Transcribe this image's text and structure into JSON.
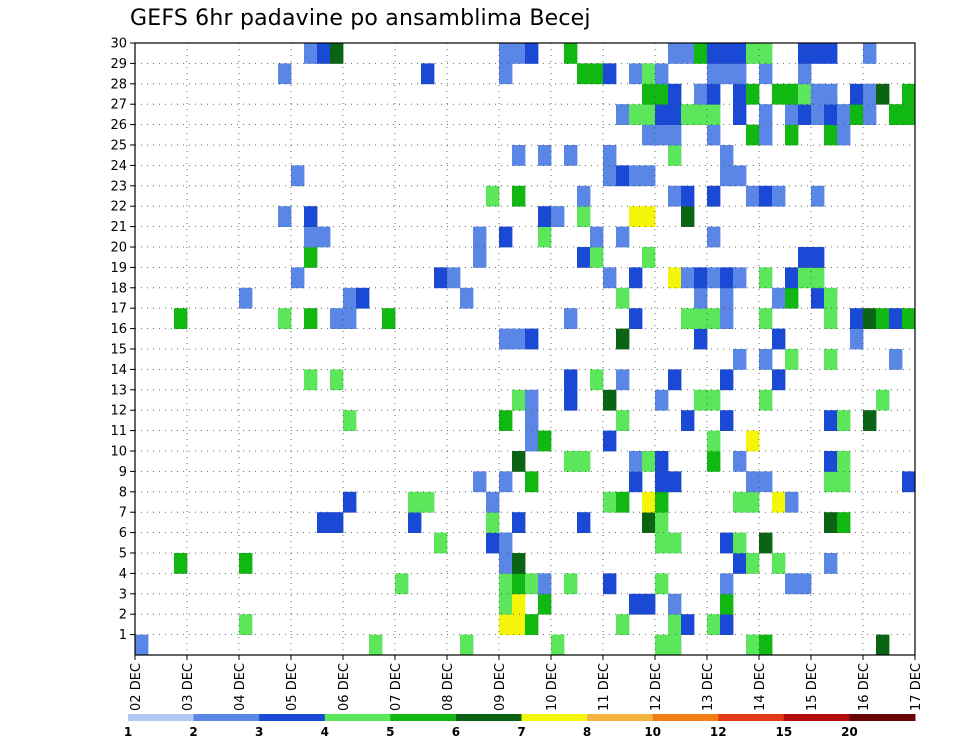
{
  "chart_data": {
    "type": "heatmap",
    "title": "GEFS 6hr padavine po ansamblima Becej",
    "xlabel": "",
    "ylabel": "",
    "x_tick_labels": [
      "02 DEC",
      "03 DEC",
      "04 DEC",
      "05 DEC",
      "06 DEC",
      "07 DEC",
      "08 DEC",
      "09 DEC",
      "10 DEC",
      "11 DEC",
      "12 DEC",
      "13 DEC",
      "14 DEC",
      "15 DEC",
      "16 DEC",
      "17 DEC"
    ],
    "y_tick_labels": [
      "1",
      "2",
      "3",
      "4",
      "5",
      "6",
      "7",
      "8",
      "9",
      "10",
      "11",
      "12",
      "13",
      "14",
      "15",
      "16",
      "17",
      "18",
      "19",
      "20",
      "21",
      "22",
      "23",
      "24",
      "25",
      "26",
      "27",
      "28",
      "29",
      "30"
    ],
    "xlim": [
      0,
      60
    ],
    "ylim": [
      0,
      30
    ],
    "grid": true,
    "legend": {
      "placement": "bottom",
      "levels": [
        "1",
        "2",
        "3",
        "4",
        "5",
        "6",
        "7",
        "8",
        "10",
        "12",
        "15",
        "20"
      ],
      "colors": [
        "#b4c8f4",
        "#5a87e6",
        "#1a49d6",
        "#5ce65c",
        "#12b812",
        "#0a6414",
        "#f5f50a",
        "#f5b440",
        "#f27d14",
        "#e23a16",
        "#b30a0a",
        "#6a0505"
      ]
    },
    "cells": [
      [
        0,
        0,
        1
      ],
      [
        18,
        0,
        3
      ],
      [
        25,
        0,
        3
      ],
      [
        32,
        0,
        3
      ],
      [
        40,
        0,
        3
      ],
      [
        41,
        0,
        3
      ],
      [
        47,
        0,
        3
      ],
      [
        48,
        0,
        4
      ],
      [
        57,
        0,
        5
      ],
      [
        8,
        1,
        3
      ],
      [
        28,
        1,
        6
      ],
      [
        29,
        1,
        6
      ],
      [
        30,
        1,
        4
      ],
      [
        37,
        1,
        3
      ],
      [
        41,
        1,
        3
      ],
      [
        42,
        1,
        2
      ],
      [
        44,
        1,
        3
      ],
      [
        45,
        1,
        2
      ],
      [
        28,
        2,
        3
      ],
      [
        29,
        2,
        6
      ],
      [
        31,
        2,
        4
      ],
      [
        38,
        2,
        2
      ],
      [
        39,
        2,
        2
      ],
      [
        41,
        2,
        1
      ],
      [
        45,
        2,
        4
      ],
      [
        20,
        3,
        3
      ],
      [
        28,
        3,
        3
      ],
      [
        29,
        3,
        4
      ],
      [
        30,
        3,
        3
      ],
      [
        31,
        3,
        1
      ],
      [
        33,
        3,
        3
      ],
      [
        36,
        3,
        2
      ],
      [
        40,
        3,
        3
      ],
      [
        45,
        3,
        1
      ],
      [
        50,
        3,
        1
      ],
      [
        51,
        3,
        1
      ],
      [
        3,
        4,
        4
      ],
      [
        8,
        4,
        4
      ],
      [
        28,
        4,
        1
      ],
      [
        29,
        4,
        5
      ],
      [
        46,
        4,
        2
      ],
      [
        47,
        4,
        3
      ],
      [
        49,
        4,
        3
      ],
      [
        53,
        4,
        1
      ],
      [
        23,
        5,
        3
      ],
      [
        27,
        5,
        2
      ],
      [
        28,
        5,
        1
      ],
      [
        40,
        5,
        3
      ],
      [
        41,
        5,
        3
      ],
      [
        45,
        5,
        2
      ],
      [
        46,
        5,
        3
      ],
      [
        48,
        5,
        5
      ],
      [
        14,
        6,
        2
      ],
      [
        15,
        6,
        2
      ],
      [
        21,
        6,
        2
      ],
      [
        27,
        6,
        3
      ],
      [
        29,
        6,
        2
      ],
      [
        34,
        6,
        2
      ],
      [
        39,
        6,
        5
      ],
      [
        40,
        6,
        3
      ],
      [
        53,
        6,
        5
      ],
      [
        54,
        6,
        4
      ],
      [
        16,
        7,
        2
      ],
      [
        21,
        7,
        3
      ],
      [
        22,
        7,
        3
      ],
      [
        27,
        7,
        1
      ],
      [
        36,
        7,
        3
      ],
      [
        37,
        7,
        4
      ],
      [
        39,
        7,
        6
      ],
      [
        40,
        7,
        4
      ],
      [
        46,
        7,
        3
      ],
      [
        47,
        7,
        3
      ],
      [
        49,
        7,
        6
      ],
      [
        50,
        7,
        1
      ],
      [
        26,
        8,
        1
      ],
      [
        28,
        8,
        1
      ],
      [
        30,
        8,
        4
      ],
      [
        38,
        8,
        2
      ],
      [
        40,
        8,
        2
      ],
      [
        41,
        8,
        2
      ],
      [
        47,
        8,
        1
      ],
      [
        48,
        8,
        1
      ],
      [
        53,
        8,
        3
      ],
      [
        54,
        8,
        3
      ],
      [
        59,
        8,
        2
      ],
      [
        29,
        9,
        5
      ],
      [
        33,
        9,
        3
      ],
      [
        34,
        9,
        3
      ],
      [
        38,
        9,
        1
      ],
      [
        39,
        9,
        3
      ],
      [
        40,
        9,
        2
      ],
      [
        44,
        9,
        4
      ],
      [
        46,
        9,
        1
      ],
      [
        53,
        9,
        2
      ],
      [
        54,
        9,
        3
      ],
      [
        30,
        10,
        1
      ],
      [
        31,
        10,
        4
      ],
      [
        36,
        10,
        2
      ],
      [
        44,
        10,
        3
      ],
      [
        47,
        10,
        6
      ],
      [
        16,
        11,
        3
      ],
      [
        28,
        11,
        4
      ],
      [
        30,
        11,
        1
      ],
      [
        37,
        11,
        3
      ],
      [
        42,
        11,
        2
      ],
      [
        45,
        11,
        2
      ],
      [
        53,
        11,
        2
      ],
      [
        54,
        11,
        3
      ],
      [
        56,
        11,
        5
      ],
      [
        29,
        12,
        3
      ],
      [
        30,
        12,
        1
      ],
      [
        33,
        12,
        2
      ],
      [
        36,
        12,
        5
      ],
      [
        40,
        12,
        1
      ],
      [
        43,
        12,
        3
      ],
      [
        44,
        12,
        3
      ],
      [
        48,
        12,
        3
      ],
      [
        57,
        12,
        3
      ],
      [
        13,
        13,
        3
      ],
      [
        15,
        13,
        3
      ],
      [
        33,
        13,
        2
      ],
      [
        35,
        13,
        3
      ],
      [
        37,
        13,
        1
      ],
      [
        41,
        13,
        2
      ],
      [
        45,
        13,
        2
      ],
      [
        49,
        13,
        2
      ],
      [
        46,
        14,
        1
      ],
      [
        48,
        14,
        1
      ],
      [
        50,
        14,
        3
      ],
      [
        53,
        14,
        3
      ],
      [
        58,
        14,
        1
      ],
      [
        28,
        15,
        1
      ],
      [
        29,
        15,
        1
      ],
      [
        30,
        15,
        2
      ],
      [
        37,
        15,
        5
      ],
      [
        43,
        15,
        2
      ],
      [
        49,
        15,
        2
      ],
      [
        55,
        15,
        1
      ],
      [
        3,
        16,
        4
      ],
      [
        11,
        16,
        3
      ],
      [
        13,
        16,
        4
      ],
      [
        15,
        16,
        1
      ],
      [
        16,
        16,
        1
      ],
      [
        19,
        16,
        4
      ],
      [
        33,
        16,
        1
      ],
      [
        38,
        16,
        2
      ],
      [
        42,
        16,
        3
      ],
      [
        43,
        16,
        3
      ],
      [
        44,
        16,
        3
      ],
      [
        45,
        16,
        1
      ],
      [
        48,
        16,
        3
      ],
      [
        53,
        16,
        3
      ],
      [
        55,
        16,
        2
      ],
      [
        56,
        16,
        5
      ],
      [
        57,
        16,
        4
      ],
      [
        58,
        16,
        2
      ],
      [
        59,
        16,
        4
      ],
      [
        8,
        17,
        1
      ],
      [
        16,
        17,
        1
      ],
      [
        17,
        17,
        2
      ],
      [
        25,
        17,
        1
      ],
      [
        37,
        17,
        3
      ],
      [
        43,
        17,
        1
      ],
      [
        45,
        17,
        1
      ],
      [
        49,
        17,
        1
      ],
      [
        50,
        17,
        4
      ],
      [
        52,
        17,
        2
      ],
      [
        53,
        17,
        3
      ],
      [
        12,
        18,
        1
      ],
      [
        23,
        18,
        2
      ],
      [
        24,
        18,
        1
      ],
      [
        36,
        18,
        1
      ],
      [
        38,
        18,
        2
      ],
      [
        41,
        18,
        6
      ],
      [
        42,
        18,
        1
      ],
      [
        43,
        18,
        2
      ],
      [
        44,
        18,
        1
      ],
      [
        45,
        18,
        2
      ],
      [
        46,
        18,
        1
      ],
      [
        48,
        18,
        3
      ],
      [
        50,
        18,
        2
      ],
      [
        51,
        18,
        3
      ],
      [
        52,
        18,
        3
      ],
      [
        13,
        19,
        4
      ],
      [
        26,
        19,
        1
      ],
      [
        34,
        19,
        2
      ],
      [
        35,
        19,
        3
      ],
      [
        39,
        19,
        3
      ],
      [
        51,
        19,
        2
      ],
      [
        52,
        19,
        2
      ],
      [
        13,
        20,
        1
      ],
      [
        14,
        20,
        1
      ],
      [
        26,
        20,
        1
      ],
      [
        28,
        20,
        2
      ],
      [
        31,
        20,
        3
      ],
      [
        35,
        20,
        1
      ],
      [
        37,
        20,
        1
      ],
      [
        44,
        20,
        1
      ],
      [
        11,
        21,
        1
      ],
      [
        13,
        21,
        2
      ],
      [
        31,
        21,
        2
      ],
      [
        32,
        21,
        1
      ],
      [
        34,
        21,
        3
      ],
      [
        38,
        21,
        6
      ],
      [
        39,
        21,
        6
      ],
      [
        42,
        21,
        5
      ],
      [
        27,
        22,
        3
      ],
      [
        29,
        22,
        4
      ],
      [
        34,
        22,
        1
      ],
      [
        41,
        22,
        1
      ],
      [
        42,
        22,
        2
      ],
      [
        44,
        22,
        2
      ],
      [
        47,
        22,
        1
      ],
      [
        48,
        22,
        2
      ],
      [
        49,
        22,
        1
      ],
      [
        52,
        22,
        1
      ],
      [
        12,
        23,
        1
      ],
      [
        36,
        23,
        1
      ],
      [
        37,
        23,
        2
      ],
      [
        38,
        23,
        1
      ],
      [
        39,
        23,
        1
      ],
      [
        45,
        23,
        1
      ],
      [
        46,
        23,
        1
      ],
      [
        29,
        24,
        1
      ],
      [
        31,
        24,
        1
      ],
      [
        33,
        24,
        1
      ],
      [
        36,
        24,
        1
      ],
      [
        41,
        24,
        3
      ],
      [
        45,
        24,
        1
      ],
      [
        39,
        25,
        1
      ],
      [
        40,
        25,
        1
      ],
      [
        41,
        25,
        1
      ],
      [
        44,
        25,
        1
      ],
      [
        47,
        25,
        4
      ],
      [
        48,
        25,
        1
      ],
      [
        50,
        25,
        4
      ],
      [
        53,
        25,
        4
      ],
      [
        54,
        25,
        1
      ],
      [
        37,
        26,
        1
      ],
      [
        38,
        26,
        3
      ],
      [
        39,
        26,
        3
      ],
      [
        40,
        26,
        2
      ],
      [
        41,
        26,
        2
      ],
      [
        42,
        26,
        3
      ],
      [
        43,
        26,
        3
      ],
      [
        44,
        26,
        3
      ],
      [
        46,
        26,
        2
      ],
      [
        48,
        26,
        1
      ],
      [
        50,
        26,
        1
      ],
      [
        51,
        26,
        2
      ],
      [
        52,
        26,
        1
      ],
      [
        53,
        26,
        2
      ],
      [
        54,
        26,
        1
      ],
      [
        55,
        26,
        4
      ],
      [
        56,
        26,
        1
      ],
      [
        58,
        26,
        4
      ],
      [
        59,
        26,
        4
      ],
      [
        39,
        27,
        4
      ],
      [
        40,
        27,
        4
      ],
      [
        41,
        27,
        2
      ],
      [
        43,
        27,
        1
      ],
      [
        44,
        27,
        2
      ],
      [
        46,
        27,
        2
      ],
      [
        47,
        27,
        4
      ],
      [
        49,
        27,
        4
      ],
      [
        50,
        27,
        4
      ],
      [
        51,
        27,
        3
      ],
      [
        52,
        27,
        1
      ],
      [
        53,
        27,
        1
      ],
      [
        55,
        27,
        2
      ],
      [
        56,
        27,
        1
      ],
      [
        57,
        27,
        5
      ],
      [
        59,
        27,
        4
      ],
      [
        11,
        28,
        1
      ],
      [
        22,
        28,
        2
      ],
      [
        28,
        28,
        1
      ],
      [
        34,
        28,
        4
      ],
      [
        35,
        28,
        4
      ],
      [
        36,
        28,
        2
      ],
      [
        38,
        28,
        1
      ],
      [
        39,
        28,
        3
      ],
      [
        40,
        28,
        1
      ],
      [
        44,
        28,
        1
      ],
      [
        45,
        28,
        1
      ],
      [
        46,
        28,
        1
      ],
      [
        48,
        28,
        1
      ],
      [
        51,
        28,
        1
      ],
      [
        13,
        29,
        1
      ],
      [
        14,
        29,
        2
      ],
      [
        15,
        29,
        5
      ],
      [
        28,
        29,
        1
      ],
      [
        29,
        29,
        1
      ],
      [
        30,
        29,
        2
      ],
      [
        33,
        29,
        4
      ],
      [
        41,
        29,
        1
      ],
      [
        42,
        29,
        1
      ],
      [
        43,
        29,
        4
      ],
      [
        44,
        29,
        2
      ],
      [
        45,
        29,
        2
      ],
      [
        46,
        29,
        2
      ],
      [
        47,
        29,
        3
      ],
      [
        48,
        29,
        3
      ],
      [
        51,
        29,
        2
      ],
      [
        52,
        29,
        2
      ],
      [
        53,
        29,
        2
      ],
      [
        56,
        29,
        1
      ]
    ]
  }
}
